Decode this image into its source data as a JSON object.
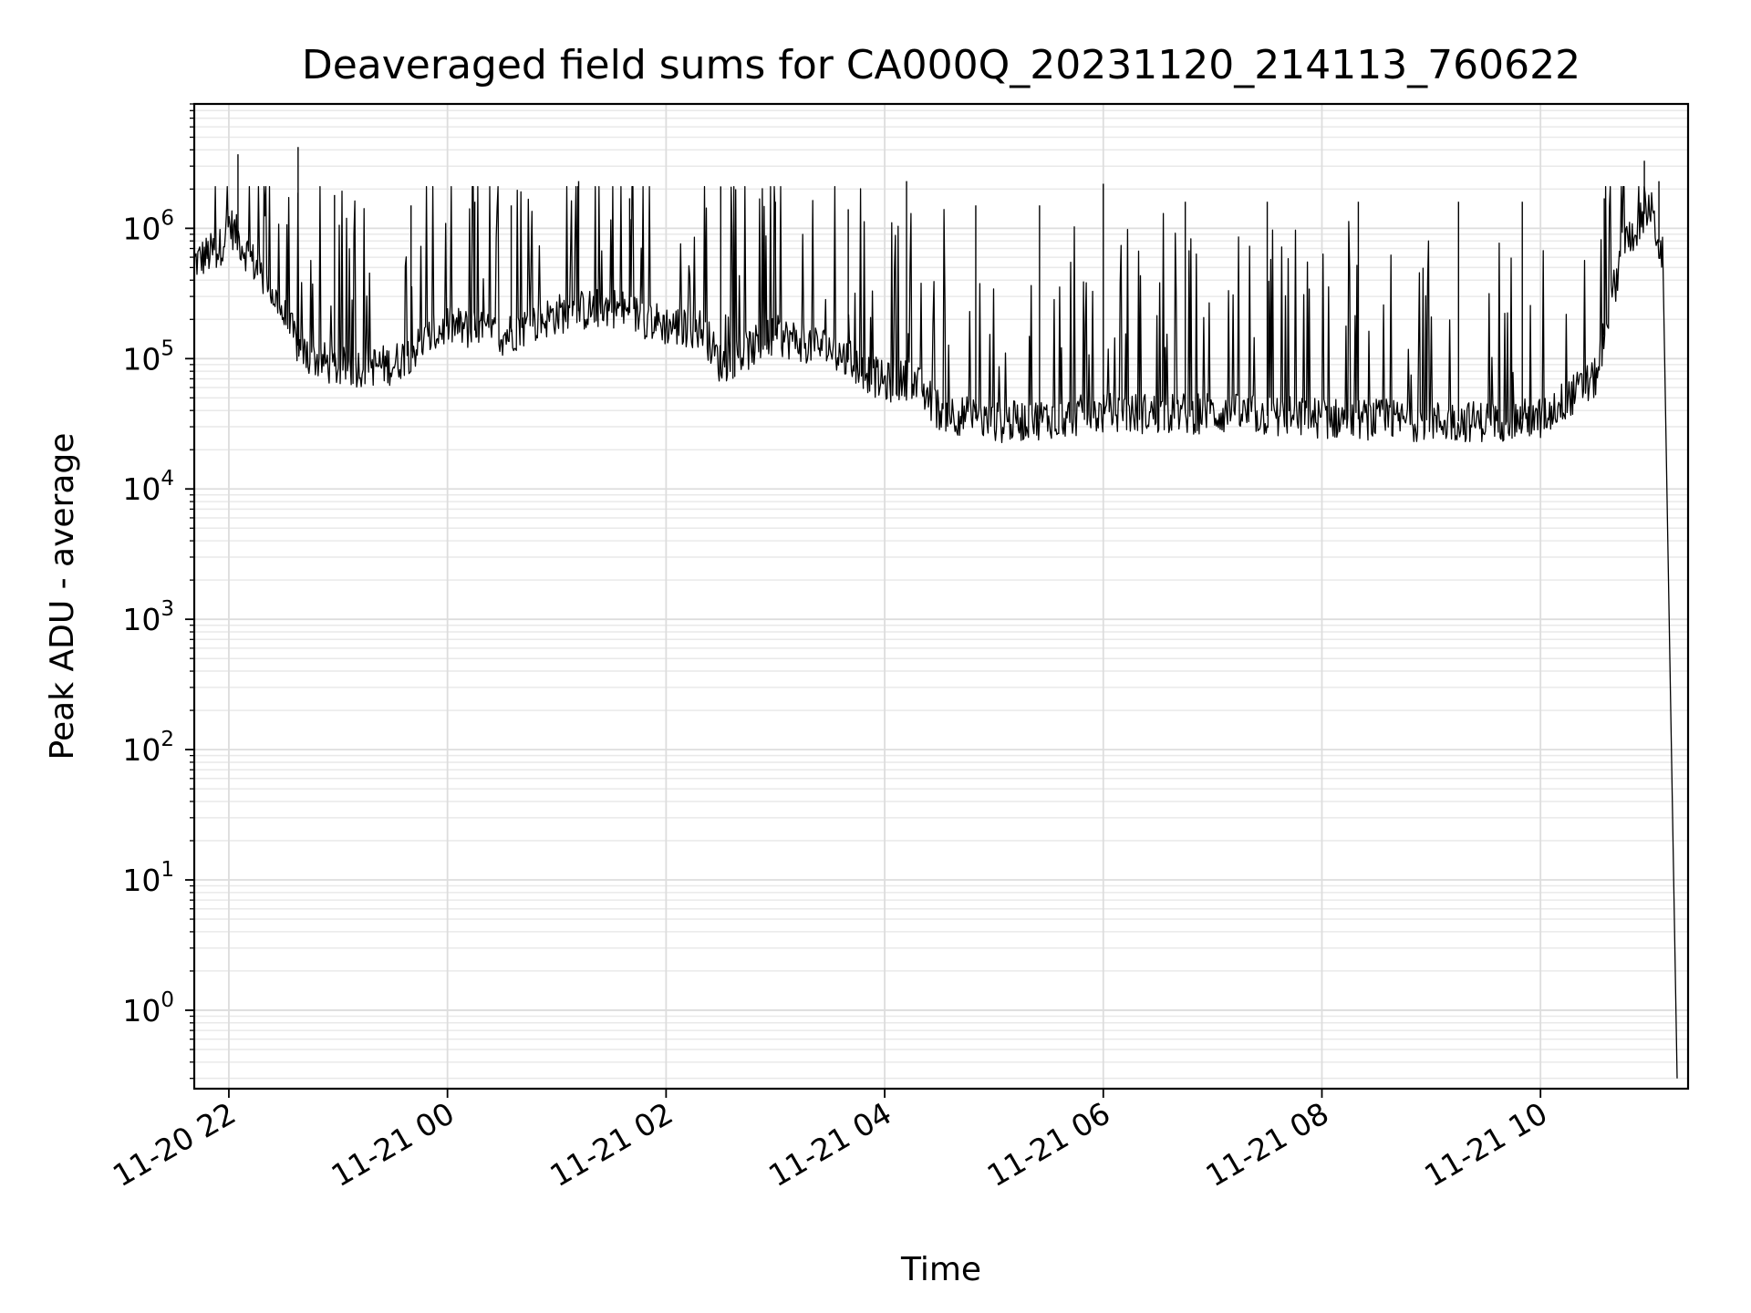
{
  "chart_data": {
    "type": "line",
    "title": "Deaveraged field sums for CA000Q_20231120_214113_760622",
    "xlabel": "Time",
    "ylabel": "Peak ADU - average",
    "y_scale": "log",
    "grid": true,
    "grid_minor": true,
    "ylim": [
      0.25,
      9000000
    ],
    "xlim": [
      "2023-11-20 21:41",
      "2023-11-21 11:21"
    ],
    "x_ticks": [
      {
        "label": "11-20 22",
        "time": "2023-11-20 22:00"
      },
      {
        "label": "11-21 00",
        "time": "2023-11-21 00:00"
      },
      {
        "label": "11-21 02",
        "time": "2023-11-21 02:00"
      },
      {
        "label": "11-21 04",
        "time": "2023-11-21 04:00"
      },
      {
        "label": "11-21 06",
        "time": "2023-11-21 06:00"
      },
      {
        "label": "11-21 08",
        "time": "2023-11-21 08:00"
      },
      {
        "label": "11-21 10",
        "time": "2023-11-21 10:00"
      }
    ],
    "y_ticks": [
      {
        "base": "10",
        "exp": "0",
        "value": 1
      },
      {
        "base": "10",
        "exp": "1",
        "value": 10
      },
      {
        "base": "10",
        "exp": "2",
        "value": 100
      },
      {
        "base": "10",
        "exp": "3",
        "value": 1000
      },
      {
        "base": "10",
        "exp": "4",
        "value": 10000
      },
      {
        "base": "10",
        "exp": "5",
        "value": 100000
      },
      {
        "base": "10",
        "exp": "6",
        "value": 1000000
      }
    ],
    "series": [
      {
        "color": "#000000",
        "baseline": [
          {
            "time": "2023-11-20 21:41",
            "value": 550000
          },
          {
            "time": "2023-11-20 21:55",
            "value": 700000
          },
          {
            "time": "2023-11-20 22:00",
            "value": 1100000
          },
          {
            "time": "2023-11-20 22:10",
            "value": 650000
          },
          {
            "time": "2023-11-20 22:25",
            "value": 300000
          },
          {
            "time": "2023-11-20 22:40",
            "value": 110000
          },
          {
            "time": "2023-11-20 23:00",
            "value": 85000
          },
          {
            "time": "2023-11-20 23:30",
            "value": 90000
          },
          {
            "time": "2023-11-21 00:00",
            "value": 180000
          },
          {
            "time": "2023-11-21 00:30",
            "value": 150000
          },
          {
            "time": "2023-11-21 01:00",
            "value": 220000
          },
          {
            "time": "2023-11-21 01:30",
            "value": 250000
          },
          {
            "time": "2023-11-21 02:00",
            "value": 180000
          },
          {
            "time": "2023-11-21 02:20",
            "value": 170000
          },
          {
            "time": "2023-11-21 02:30",
            "value": 90000
          },
          {
            "time": "2023-11-21 03:00",
            "value": 150000
          },
          {
            "time": "2023-11-21 03:30",
            "value": 120000
          },
          {
            "time": "2023-11-21 04:00",
            "value": 65000
          },
          {
            "time": "2023-11-21 04:15",
            "value": 70000
          },
          {
            "time": "2023-11-21 04:30",
            "value": 40000
          },
          {
            "time": "2023-11-21 05:00",
            "value": 32000
          },
          {
            "time": "2023-11-21 06:00",
            "value": 38000
          },
          {
            "time": "2023-11-21 07:00",
            "value": 38000
          },
          {
            "time": "2023-11-21 08:00",
            "value": 35000
          },
          {
            "time": "2023-11-21 09:00",
            "value": 33000
          },
          {
            "time": "2023-11-21 09:30",
            "value": 33000
          },
          {
            "time": "2023-11-21 10:00",
            "value": 35000
          },
          {
            "time": "2023-11-21 10:30",
            "value": 70000
          },
          {
            "time": "2023-11-21 10:45",
            "value": 700000
          },
          {
            "time": "2023-11-21 11:00",
            "value": 1500000
          },
          {
            "time": "2023-11-21 11:07",
            "value": 600000
          },
          {
            "time": "2023-11-21 11:15",
            "value": 0.3
          }
        ],
        "spikes": [
          {
            "time": "2023-11-20 22:05",
            "value": 3700000
          },
          {
            "time": "2023-11-20 22:38",
            "value": 4200000
          },
          {
            "time": "2023-11-20 22:58",
            "value": 1800000
          },
          {
            "time": "2023-11-20 23:40",
            "value": 1500000
          },
          {
            "time": "2023-11-21 00:15",
            "value": 1600000
          },
          {
            "time": "2023-11-21 00:35",
            "value": 1500000
          },
          {
            "time": "2023-11-21 01:12",
            "value": 2300000
          },
          {
            "time": "2023-11-21 01:40",
            "value": 1700000
          },
          {
            "time": "2023-11-21 02:30",
            "value": 2100000
          },
          {
            "time": "2023-11-21 03:00",
            "value": 1600000
          },
          {
            "time": "2023-11-21 03:40",
            "value": 1400000
          },
          {
            "time": "2023-11-21 04:12",
            "value": 2300000
          },
          {
            "time": "2023-11-21 04:50",
            "value": 1500000
          },
          {
            "time": "2023-11-21 05:25",
            "value": 1500000
          },
          {
            "time": "2023-11-21 06:00",
            "value": 2200000
          },
          {
            "time": "2023-11-21 06:45",
            "value": 1600000
          },
          {
            "time": "2023-11-21 07:30",
            "value": 1600000
          },
          {
            "time": "2023-11-21 08:20",
            "value": 1600000
          },
          {
            "time": "2023-11-21 09:15",
            "value": 1600000
          },
          {
            "time": "2023-11-21 09:50",
            "value": 1600000
          },
          {
            "time": "2023-11-21 10:35",
            "value": 1700000
          },
          {
            "time": "2023-11-21 10:57",
            "value": 3300000
          },
          {
            "time": "2023-11-21 11:05",
            "value": 2300000
          }
        ]
      }
    ]
  }
}
